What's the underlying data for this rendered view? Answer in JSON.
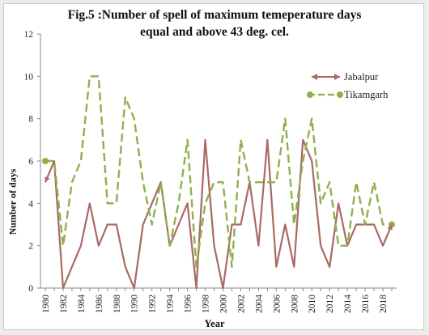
{
  "chart_data": {
    "type": "line",
    "title_line1": "Fig.5 :Number of spell of maximum temeperature days",
    "title_line2": "equal and above 43 deg. cel.",
    "xlabel": "Year",
    "ylabel": "Number of days",
    "ylim": [
      0,
      12
    ],
    "yticks": [
      0,
      2,
      4,
      6,
      8,
      10,
      12
    ],
    "xlim": [
      1980,
      2019
    ],
    "xticks": [
      1980,
      1982,
      1984,
      1986,
      1988,
      1990,
      1992,
      1994,
      1996,
      1998,
      2000,
      2002,
      2004,
      2006,
      2008,
      2010,
      2012,
      2014,
      2016,
      2018
    ],
    "legend_position": "right",
    "grid": false,
    "x": [
      1980,
      1981,
      1982,
      1983,
      1984,
      1985,
      1986,
      1987,
      1988,
      1989,
      1990,
      1991,
      1992,
      1993,
      1994,
      1995,
      1996,
      1997,
      1998,
      1999,
      2000,
      2001,
      2002,
      2003,
      2004,
      2005,
      2006,
      2007,
      2008,
      2009,
      2010,
      2011,
      2012,
      2013,
      2014,
      2015,
      2016,
      2017,
      2018,
      2019
    ],
    "series": [
      {
        "name": "Jabalpur",
        "color": "#a86a62",
        "style": "solid",
        "values": [
          5,
          6,
          0,
          1,
          2,
          4,
          2,
          3,
          3,
          1,
          0,
          3,
          4,
          5,
          2,
          3,
          4,
          0,
          7,
          2,
          0,
          3,
          3,
          5,
          2,
          7,
          1,
          3,
          1,
          7,
          6,
          2,
          1,
          4,
          2,
          3,
          3,
          3,
          2,
          3
        ]
      },
      {
        "name": "Tikamgarh",
        "color": "#8fb04e",
        "style": "dashed",
        "values": [
          6,
          6,
          2,
          5,
          6,
          10,
          10,
          4,
          4,
          9,
          8,
          5,
          3,
          5,
          2,
          4,
          7,
          1,
          4,
          5,
          5,
          1,
          7,
          5,
          5,
          5,
          5,
          8,
          3,
          6,
          8,
          4,
          5,
          2,
          2,
          5,
          3,
          5,
          3,
          3
        ]
      }
    ]
  }
}
